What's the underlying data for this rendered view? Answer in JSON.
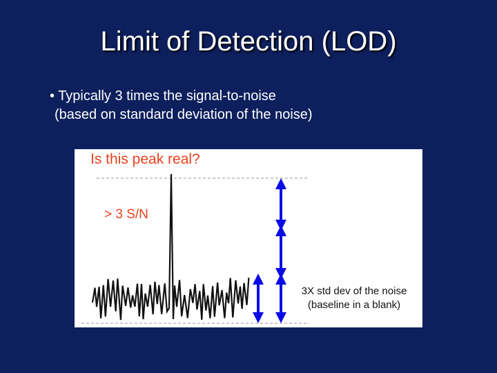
{
  "slide": {
    "title": "Limit of Detection (LOD)",
    "bullet_line1": "• Typically 3 times the signal-to-noise",
    "bullet_line2": "(based on standard deviation of the noise)"
  },
  "figure": {
    "question": "Is this peak real?",
    "sn_label": "> 3 S/N",
    "noise_label_line1": "3X std dev of the noise",
    "noise_label_line2": "(baseline in a blank)",
    "colors": {
      "background": "#0d1f5c",
      "annotation": "#e8421c",
      "arrow": "#0a0ae6",
      "trace": "#111111"
    }
  }
}
